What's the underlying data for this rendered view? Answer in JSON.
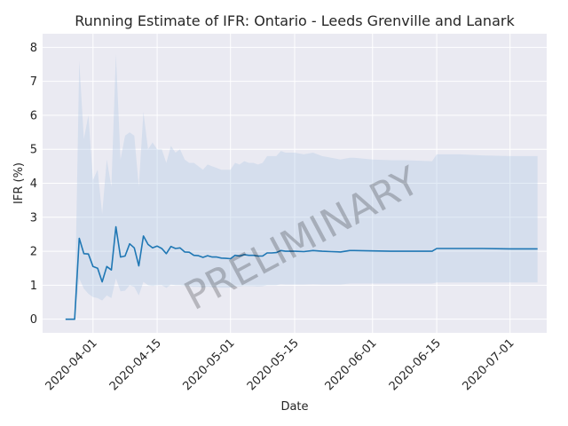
{
  "chart_data": {
    "type": "line",
    "title": "Running Estimate of IFR: Ontario - Leeds Grenville and Lanark",
    "xlabel": "Date",
    "ylabel": "IFR (%)",
    "watermark": "PRELIMINARY",
    "x_ticks": [
      "2020-04-01",
      "2020-04-15",
      "2020-05-01",
      "2020-05-15",
      "2020-06-01",
      "2020-06-15",
      "2020-07-01"
    ],
    "y_ticks": [
      0,
      1,
      2,
      3,
      4,
      5,
      6,
      7,
      8
    ],
    "xlim": [
      "2020-03-21",
      "2020-07-09"
    ],
    "ylim": [
      -0.4,
      8.4
    ],
    "grid": true,
    "legend": "none",
    "colors": {
      "line": "#1f77b4",
      "band": "#b0c8e4",
      "background": "#eaeaf2",
      "grid": "#ffffff"
    },
    "series": [
      {
        "dates": [
          "2020-03-26",
          "2020-03-28",
          "2020-03-29",
          "2020-03-30",
          "2020-03-31",
          "2020-04-01",
          "2020-04-02",
          "2020-04-03",
          "2020-04-04",
          "2020-04-05",
          "2020-04-06",
          "2020-04-07",
          "2020-04-08",
          "2020-04-09",
          "2020-04-10",
          "2020-04-11",
          "2020-04-12",
          "2020-04-13",
          "2020-04-14",
          "2020-04-15",
          "2020-04-16",
          "2020-04-17",
          "2020-04-18",
          "2020-04-19",
          "2020-04-20",
          "2020-04-21",
          "2020-04-22",
          "2020-04-23",
          "2020-04-24",
          "2020-04-25",
          "2020-04-26",
          "2020-04-27",
          "2020-04-28",
          "2020-04-29",
          "2020-04-30",
          "2020-05-01",
          "2020-05-02",
          "2020-05-03",
          "2020-05-04",
          "2020-05-05",
          "2020-05-06",
          "2020-05-07",
          "2020-05-08",
          "2020-05-09",
          "2020-05-10",
          "2020-05-11",
          "2020-05-12",
          "2020-05-13",
          "2020-05-14",
          "2020-05-15",
          "2020-05-17",
          "2020-05-19",
          "2020-05-21",
          "2020-05-23",
          "2020-05-25",
          "2020-05-27",
          "2020-05-28",
          "2020-06-01",
          "2020-06-05",
          "2020-06-08",
          "2020-06-12",
          "2020-06-14",
          "2020-06-15",
          "2020-06-20",
          "2020-06-25",
          "2020-07-01",
          "2020-07-07"
        ],
        "values": [
          0.0,
          0.0,
          2.38,
          1.93,
          1.92,
          1.55,
          1.5,
          1.1,
          1.55,
          1.45,
          2.72,
          1.83,
          1.86,
          2.22,
          2.1,
          1.57,
          2.45,
          2.2,
          2.1,
          2.15,
          2.08,
          1.93,
          2.14,
          2.08,
          2.1,
          1.98,
          1.97,
          1.88,
          1.87,
          1.82,
          1.87,
          1.83,
          1.83,
          1.8,
          1.79,
          1.78,
          1.88,
          1.86,
          1.9,
          1.88,
          1.88,
          1.86,
          1.86,
          1.95,
          1.95,
          1.96,
          2.02,
          2.0,
          2.0,
          2.0,
          1.99,
          2.02,
          2.0,
          1.99,
          1.98,
          2.02,
          2.02,
          2.01,
          2.0,
          2.0,
          2.0,
          2.0,
          2.08,
          2.08,
          2.08,
          2.07,
          2.07
        ],
        "upper": [
          0.0,
          0.0,
          7.6,
          5.3,
          6.0,
          4.1,
          4.4,
          3.1,
          4.7,
          3.9,
          7.8,
          4.7,
          5.4,
          5.5,
          5.4,
          3.9,
          6.1,
          5.0,
          5.2,
          5.0,
          5.0,
          4.6,
          5.1,
          4.9,
          5.0,
          4.7,
          4.6,
          4.6,
          4.5,
          4.4,
          4.55,
          4.5,
          4.45,
          4.4,
          4.4,
          4.4,
          4.6,
          4.55,
          4.65,
          4.6,
          4.6,
          4.55,
          4.6,
          4.8,
          4.8,
          4.8,
          4.95,
          4.9,
          4.9,
          4.9,
          4.85,
          4.9,
          4.8,
          4.75,
          4.7,
          4.75,
          4.75,
          4.7,
          4.68,
          4.68,
          4.66,
          4.65,
          4.85,
          4.85,
          4.82,
          4.8,
          4.8
        ],
        "lower": [
          0.0,
          0.0,
          1.2,
          0.9,
          0.75,
          0.65,
          0.62,
          0.55,
          0.7,
          0.62,
          1.2,
          0.82,
          0.84,
          1.0,
          0.95,
          0.7,
          1.1,
          1.0,
          0.98,
          1.0,
          1.0,
          0.92,
          1.02,
          1.0,
          1.0,
          0.98,
          0.97,
          0.95,
          0.95,
          0.93,
          0.96,
          0.94,
          0.94,
          0.93,
          0.93,
          0.93,
          0.97,
          0.96,
          0.98,
          0.97,
          0.97,
          0.96,
          0.97,
          1.0,
          1.0,
          1.0,
          1.03,
          1.02,
          1.02,
          1.02,
          1.02,
          1.03,
          1.02,
          1.02,
          1.02,
          1.05,
          1.05,
          1.05,
          1.05,
          1.05,
          1.05,
          1.05,
          1.08,
          1.08,
          1.08,
          1.08,
          1.08
        ]
      }
    ]
  }
}
